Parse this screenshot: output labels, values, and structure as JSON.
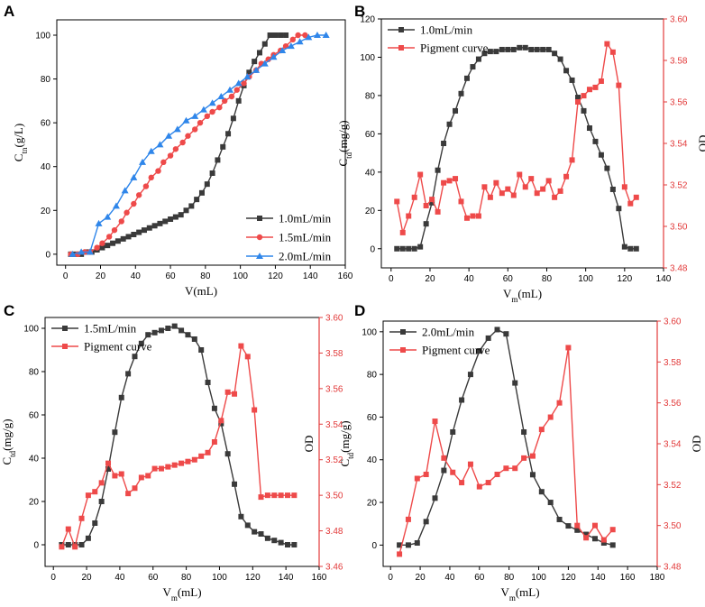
{
  "colors": {
    "black": "#3a3a3a",
    "red": "#ee4a4a",
    "blue": "#2f86ea",
    "axis_red": "#e23b3b"
  },
  "chart_data": [
    {
      "id": "A",
      "type": "line",
      "panel_label": "A",
      "xlabel": "V(mL)",
      "ylabel": "C",
      "ylabel_sub": "tn",
      "ylabel_suffix": "(g/L)",
      "xlim": [
        -5,
        160
      ],
      "ylim": [
        -5,
        107
      ],
      "xticks": [
        0,
        20,
        40,
        60,
        80,
        100,
        120,
        140,
        160
      ],
      "yticks": [
        0,
        20,
        40,
        60,
        80,
        100
      ],
      "legend_position": "bottom-right",
      "series": [
        {
          "name": "1.0mL/min",
          "color": "#3a3a3a",
          "marker": "square",
          "x": [
            3,
            6,
            9,
            12,
            15,
            18,
            21,
            24,
            27,
            30,
            33,
            36,
            39,
            42,
            45,
            48,
            51,
            54,
            57,
            60,
            63,
            66,
            69,
            72,
            75,
            78,
            81,
            84,
            87,
            90,
            93,
            96,
            99,
            102,
            105,
            108,
            111,
            114,
            117,
            120,
            123,
            126
          ],
          "y": [
            0,
            0,
            0,
            1,
            1,
            2,
            3,
            4,
            5,
            6,
            7,
            8,
            9,
            10,
            11,
            12,
            13,
            14,
            15,
            16,
            17,
            18,
            20,
            22,
            25,
            28,
            32,
            37,
            43,
            49,
            55,
            62,
            70,
            77,
            83,
            88,
            92,
            96,
            100,
            100,
            100,
            100
          ]
        },
        {
          "name": "1.5mL/min",
          "color": "#ee4a4a",
          "marker": "circle",
          "x": [
            3,
            7,
            11,
            14,
            18,
            21,
            25,
            28,
            32,
            35,
            39,
            42,
            46,
            49,
            53,
            56,
            60,
            63,
            67,
            70,
            74,
            77,
            81,
            84,
            88,
            91,
            95,
            98,
            102,
            105,
            109,
            112,
            116,
            119,
            123,
            126,
            130,
            133,
            137
          ],
          "y": [
            0,
            0,
            1,
            1,
            3,
            5,
            8,
            11,
            15,
            19,
            23,
            27,
            31,
            35,
            38,
            42,
            45,
            48,
            51,
            54,
            57,
            60,
            63,
            65,
            67,
            70,
            72,
            75,
            78,
            81,
            84,
            87,
            89,
            91,
            93,
            95,
            98,
            100,
            100
          ]
        },
        {
          "name": "2.0mL/min",
          "color": "#2f86ea",
          "marker": "triangle",
          "x": [
            4,
            9,
            14,
            19,
            24,
            29,
            34,
            39,
            44,
            49,
            54,
            59,
            64,
            69,
            74,
            79,
            84,
            89,
            94,
            99,
            104,
            109,
            114,
            119,
            124,
            129,
            134,
            139,
            144,
            149
          ],
          "y": [
            0,
            1,
            1,
            14,
            17,
            22,
            29,
            35,
            42,
            47,
            50,
            54,
            57,
            61,
            63,
            66,
            69,
            72,
            75,
            78,
            81,
            84,
            87,
            90,
            93,
            95,
            97,
            99,
            100,
            100
          ]
        }
      ]
    },
    {
      "id": "B",
      "type": "line",
      "panel_label": "B",
      "xlabel": "V",
      "xlabel_sub": "m",
      "xlabel_suffix": "(mL)",
      "ylabel": "C",
      "ylabel_sub": "td",
      "ylabel_suffix": "(mg/g)",
      "y2label": "OD",
      "xlim": [
        -5,
        140
      ],
      "ylim": [
        -10,
        120
      ],
      "y2lim": [
        3.48,
        3.6
      ],
      "xticks": [
        0,
        20,
        40,
        60,
        80,
        100,
        120,
        140
      ],
      "yticks": [
        0,
        20,
        40,
        60,
        80,
        100,
        120
      ],
      "y2ticks": [
        3.48,
        3.5,
        3.52,
        3.54,
        3.56,
        3.58,
        3.6
      ],
      "legend_position": "top-left",
      "series": [
        {
          "name": "1.0mL/min",
          "color": "#3a3a3a",
          "marker": "square",
          "axis": "left",
          "x": [
            3,
            6,
            9,
            12,
            15,
            18,
            21,
            24,
            27,
            30,
            33,
            36,
            39,
            42,
            45,
            48,
            51,
            54,
            57,
            60,
            63,
            66,
            69,
            72,
            75,
            78,
            81,
            84,
            87,
            90,
            93,
            96,
            99,
            102,
            105,
            108,
            111,
            114,
            117,
            120,
            123,
            126
          ],
          "y": [
            0,
            0,
            0,
            0,
            1,
            13,
            24,
            41,
            55,
            65,
            72,
            81,
            89,
            95,
            99,
            102,
            103,
            103,
            104,
            104,
            104,
            105,
            105,
            104,
            104,
            104,
            104,
            102,
            99,
            93,
            88,
            79,
            72,
            63,
            56,
            49,
            42,
            31,
            21,
            1,
            0,
            0
          ]
        },
        {
          "name": "Pigment curve",
          "color": "#ee4a4a",
          "marker": "square",
          "axis": "right",
          "x": [
            3,
            6,
            9,
            12,
            15,
            18,
            21,
            24,
            27,
            30,
            33,
            36,
            39,
            42,
            45,
            48,
            51,
            54,
            57,
            60,
            63,
            66,
            69,
            72,
            75,
            78,
            81,
            84,
            87,
            90,
            93,
            96,
            99,
            102,
            105,
            108,
            111,
            114,
            117,
            120,
            123,
            126
          ],
          "y": [
            3.512,
            3.497,
            3.505,
            3.514,
            3.525,
            3.51,
            3.513,
            3.507,
            3.521,
            3.522,
            3.523,
            3.512,
            3.504,
            3.505,
            3.505,
            3.519,
            3.514,
            3.521,
            3.516,
            3.518,
            3.515,
            3.525,
            3.519,
            3.523,
            3.516,
            3.518,
            3.522,
            3.514,
            3.517,
            3.524,
            3.532,
            3.56,
            3.563,
            3.566,
            3.567,
            3.57,
            3.588,
            3.584,
            3.568,
            3.519,
            3.511,
            3.514
          ]
        }
      ]
    },
    {
      "id": "C",
      "type": "line",
      "panel_label": "C",
      "xlabel": "V",
      "xlabel_sub": "m",
      "xlabel_suffix": "(mL)",
      "ylabel": "C",
      "ylabel_sub": "td",
      "ylabel_suffix": "(mg/g)",
      "y2label": "",
      "xlim": [
        -5,
        160
      ],
      "ylim": [
        -10,
        105
      ],
      "y2lim": [
        3.46,
        3.6
      ],
      "xticks": [
        0,
        20,
        40,
        60,
        80,
        100,
        120,
        140,
        160
      ],
      "yticks": [
        0,
        20,
        40,
        60,
        80,
        100
      ],
      "y2ticks": [
        3.46,
        3.48,
        3.5,
        3.52,
        3.54,
        3.56,
        3.58,
        3.6
      ],
      "legend_position": "top-left",
      "series": [
        {
          "name": "1.5mL/min",
          "color": "#3a3a3a",
          "marker": "square",
          "axis": "left",
          "x": [
            5,
            9,
            13,
            17,
            21,
            25,
            29,
            33,
            37,
            41,
            45,
            49,
            53,
            57,
            61,
            65,
            69,
            73,
            77,
            81,
            85,
            89,
            93,
            97,
            101,
            105,
            109,
            113,
            117,
            121,
            125,
            129,
            133,
            137,
            141,
            145
          ],
          "y": [
            0,
            0,
            0,
            0,
            3,
            10,
            20,
            35,
            52,
            68,
            79,
            87,
            93,
            97,
            98,
            99,
            100,
            101,
            99,
            97,
            95,
            90,
            75,
            63,
            56,
            42,
            28,
            13,
            9,
            6,
            5,
            3,
            2,
            1,
            0,
            0
          ],
          "x_norm": true
        },
        {
          "name": "Pigment curve",
          "color": "#ee4a4a",
          "marker": "square",
          "axis": "right",
          "x": [
            5,
            9,
            13,
            17,
            21,
            25,
            29,
            33,
            37,
            41,
            45,
            49,
            53,
            57,
            61,
            65,
            69,
            73,
            77,
            81,
            85,
            89,
            93,
            97,
            101,
            105,
            109,
            113,
            117,
            121,
            125,
            129,
            133,
            137,
            141,
            145
          ],
          "y": [
            3.471,
            3.481,
            3.471,
            3.487,
            3.5,
            3.502,
            3.507,
            3.518,
            3.511,
            3.512,
            3.501,
            3.504,
            3.51,
            3.511,
            3.515,
            3.515,
            3.516,
            3.517,
            3.518,
            3.519,
            3.52,
            3.522,
            3.524,
            3.53,
            3.542,
            3.558,
            3.557,
            3.584,
            3.578,
            3.548,
            3.499,
            3.5,
            3.5,
            3.5,
            3.5,
            3.5
          ],
          "x_norm": true
        }
      ]
    },
    {
      "id": "D",
      "type": "line",
      "panel_label": "D",
      "xlabel": "V",
      "xlabel_sub": "m",
      "xlabel_suffix": "(mL)",
      "ylabel": "C",
      "ylabel_sub": "td",
      "ylabel_suffix": "(mg/g)",
      "ylabel_prefix": "OD",
      "y2label": "OD",
      "xlim": [
        -5,
        180
      ],
      "ylim": [
        -10,
        105
      ],
      "y2lim": [
        3.48,
        3.6
      ],
      "xticks": [
        0,
        20,
        40,
        60,
        80,
        100,
        120,
        140,
        160,
        180
      ],
      "yticks": [
        0,
        20,
        40,
        60,
        80,
        100
      ],
      "y2ticks": [
        3.48,
        3.5,
        3.52,
        3.54,
        3.56,
        3.58,
        3.6
      ],
      "legend_position": "top-left",
      "series": [
        {
          "name": "2.0mL/min",
          "color": "#3a3a3a",
          "marker": "square",
          "axis": "left",
          "x": [
            6,
            12,
            18,
            24,
            30,
            36,
            42,
            48,
            54,
            60,
            66,
            72,
            78,
            84,
            90,
            96,
            102,
            108,
            114,
            120,
            126,
            132,
            138,
            144,
            150
          ],
          "y": [
            0,
            0,
            1,
            11,
            22,
            35,
            53,
            68,
            80,
            91,
            97,
            101,
            99,
            76,
            53,
            33,
            25,
            20,
            12,
            9,
            7,
            5,
            3,
            1,
            0
          ]
        },
        {
          "name": "Pigment curve",
          "color": "#ee4a4a",
          "marker": "square",
          "axis": "right",
          "x": [
            6,
            12,
            18,
            24,
            30,
            36,
            42,
            48,
            54,
            60,
            66,
            72,
            78,
            84,
            90,
            96,
            102,
            108,
            114,
            120,
            126,
            132,
            138,
            144,
            150
          ],
          "y": [
            3.486,
            3.503,
            3.523,
            3.525,
            3.551,
            3.533,
            3.526,
            3.521,
            3.53,
            3.519,
            3.521,
            3.525,
            3.528,
            3.528,
            3.533,
            3.534,
            3.547,
            3.553,
            3.56,
            3.587,
            3.5,
            3.494,
            3.5,
            3.493,
            3.498
          ]
        }
      ]
    }
  ]
}
